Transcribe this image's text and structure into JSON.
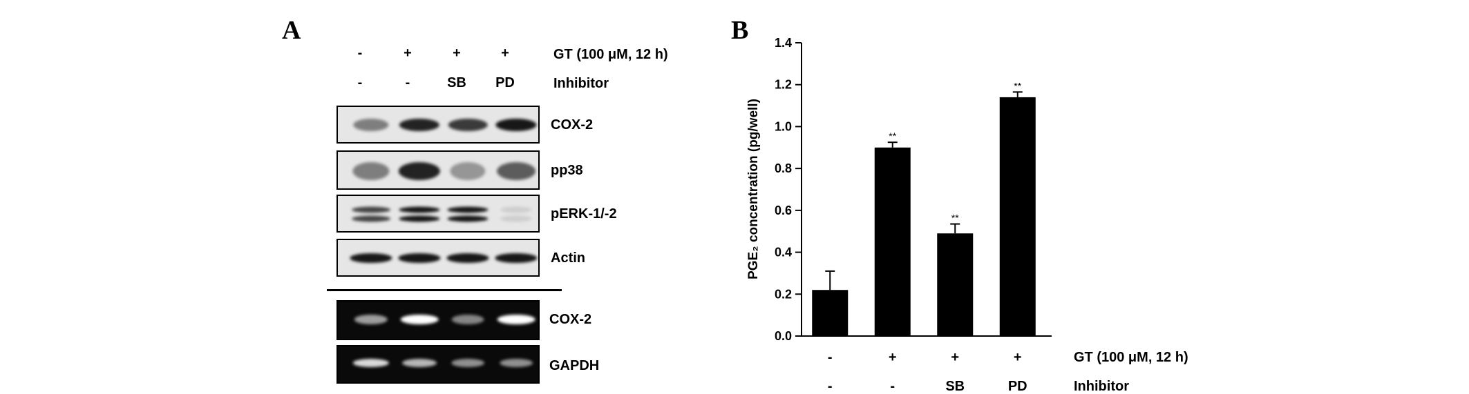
{
  "panel_a": {
    "letter": "A",
    "treatment": {
      "label": "GT (100 μM,  12 h)",
      "values": [
        "-",
        "+",
        "+",
        "+"
      ]
    },
    "inhibitor": {
      "label": "Inhibitor",
      "values": [
        "-",
        "-",
        "SB",
        "PD"
      ]
    },
    "western_blots": [
      {
        "label": "COX-2",
        "band_intensity": [
          0.45,
          0.85,
          0.75,
          0.9
        ]
      },
      {
        "label": "pp38",
        "band_intensity": [
          0.45,
          0.85,
          0.35,
          0.6
        ]
      },
      {
        "label": "pERK-1/-2",
        "band_intensity": [
          0.7,
          0.9,
          0.9,
          0.1
        ]
      },
      {
        "label": "Actin",
        "band_intensity": [
          0.9,
          0.9,
          0.9,
          0.9
        ]
      }
    ],
    "rt_pcr": [
      {
        "label": "COX-2",
        "band_intensity": [
          0.6,
          1.0,
          0.5,
          1.0
        ]
      },
      {
        "label": "GAPDH",
        "band_intensity": [
          0.85,
          0.7,
          0.55,
          0.55
        ]
      }
    ]
  },
  "panel_b": {
    "letter": "B"
  },
  "chart_data": {
    "type": "bar",
    "ylabel": "PGE₂ concentration (pg/well)",
    "ylim": [
      0,
      1.4
    ],
    "yticks": [
      "0.0",
      "0.2",
      "0.4",
      "0.6",
      "0.8",
      "1.0",
      "1.2",
      "1.4"
    ],
    "values": [
      0.22,
      0.9,
      0.49,
      1.14
    ],
    "errors": [
      0.09,
      0.025,
      0.045,
      0.025
    ],
    "significance": [
      "",
      "**",
      "**",
      "**"
    ],
    "treatment_row": {
      "label": "GT (100 μM,  12 h)",
      "values": [
        "-",
        "+",
        "+",
        "+"
      ]
    },
    "inhibitor_row": {
      "label": "Inhibitor",
      "values": [
        "-",
        "-",
        "SB",
        "PD"
      ]
    },
    "bar_color": "#000000",
    "grid": false
  }
}
